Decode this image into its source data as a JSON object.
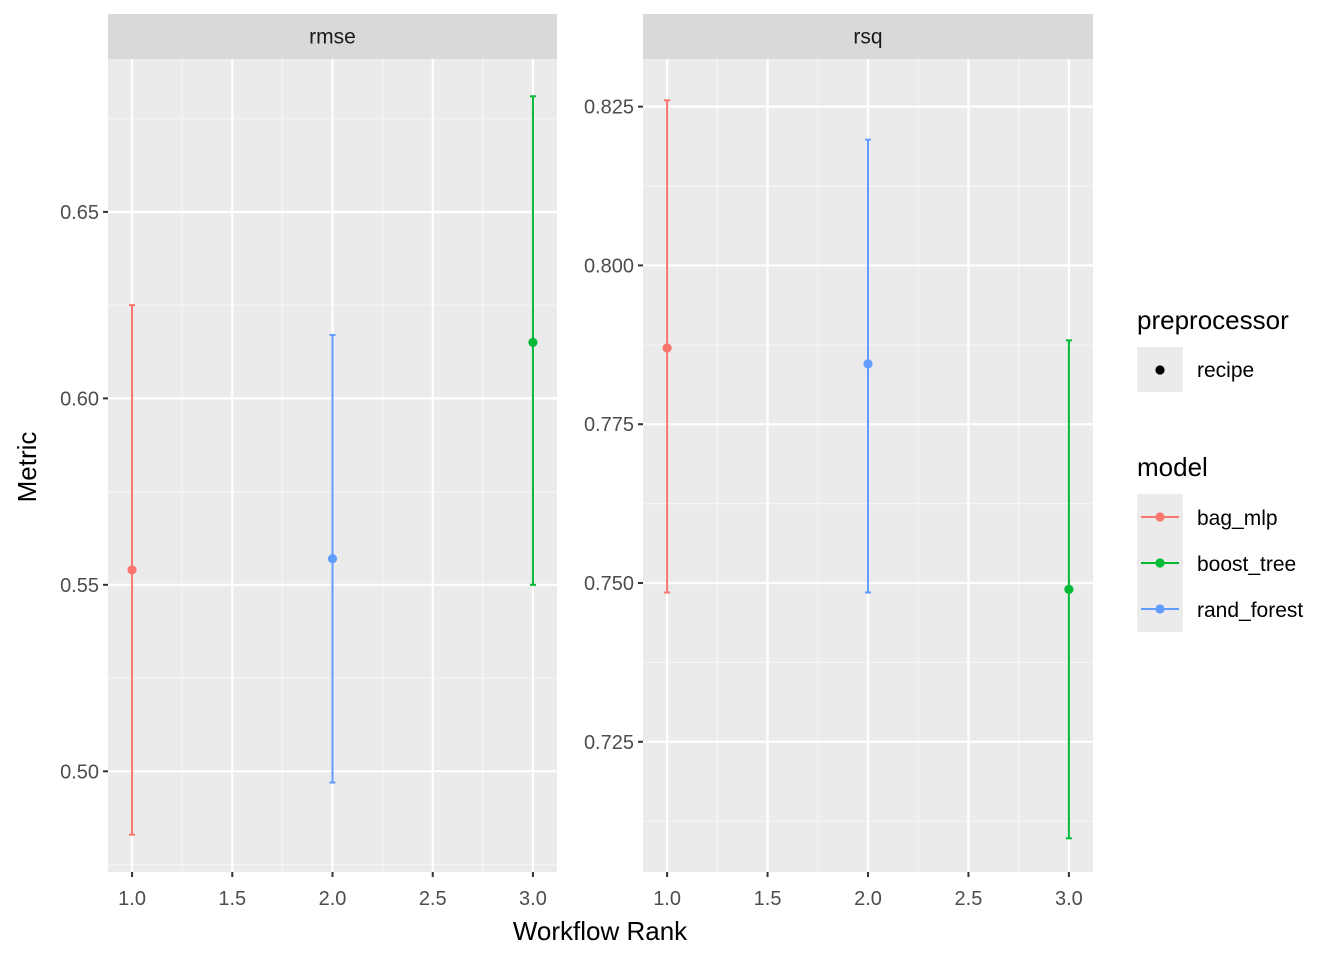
{
  "chart_data": {
    "type": "scatter",
    "xlabel": "Workflow Rank",
    "ylabel": "Metric",
    "grid": true,
    "legend_position": "right",
    "x_ticks": [
      "1.0",
      "1.5",
      "2.0",
      "2.5",
      "3.0"
    ],
    "x_tick_values": [
      1.0,
      1.5,
      2.0,
      2.5,
      3.0
    ],
    "xlim": [
      0.88,
      3.12
    ],
    "colors": {
      "bag_mlp": "#F8766D",
      "boost_tree": "#00BA38",
      "rand_forest": "#619CFF"
    },
    "panels": [
      {
        "strip": "rmse",
        "ylim": [
          0.473,
          0.691
        ],
        "y_ticks": [
          "0.50",
          "0.55",
          "0.60",
          "0.65"
        ],
        "y_tick_values": [
          0.5,
          0.55,
          0.6,
          0.65
        ],
        "points": [
          {
            "model": "bag_mlp",
            "x": 1,
            "y": 0.554,
            "lower": 0.483,
            "upper": 0.625
          },
          {
            "model": "rand_forest",
            "x": 2,
            "y": 0.557,
            "lower": 0.497,
            "upper": 0.617
          },
          {
            "model": "boost_tree",
            "x": 3,
            "y": 0.615,
            "lower": 0.55,
            "upper": 0.681
          }
        ]
      },
      {
        "strip": "rsq",
        "ylim": [
          0.7045,
          0.8325
        ],
        "y_ticks": [
          "0.725",
          "0.750",
          "0.775",
          "0.800",
          "0.825"
        ],
        "y_tick_values": [
          0.725,
          0.75,
          0.775,
          0.8,
          0.825
        ],
        "points": [
          {
            "model": "bag_mlp",
            "x": 1,
            "y": 0.787,
            "lower": 0.7485,
            "upper": 0.826
          },
          {
            "model": "rand_forest",
            "x": 2,
            "y": 0.7845,
            "lower": 0.7485,
            "upper": 0.8198
          },
          {
            "model": "boost_tree",
            "x": 3,
            "y": 0.749,
            "lower": 0.7098,
            "upper": 0.7882
          }
        ]
      }
    ],
    "legend": {
      "preprocessor_title": "preprocessor",
      "preprocessor_items": [
        "recipe"
      ],
      "model_title": "model",
      "model_items": [
        "bag_mlp",
        "boost_tree",
        "rand_forest"
      ]
    }
  }
}
